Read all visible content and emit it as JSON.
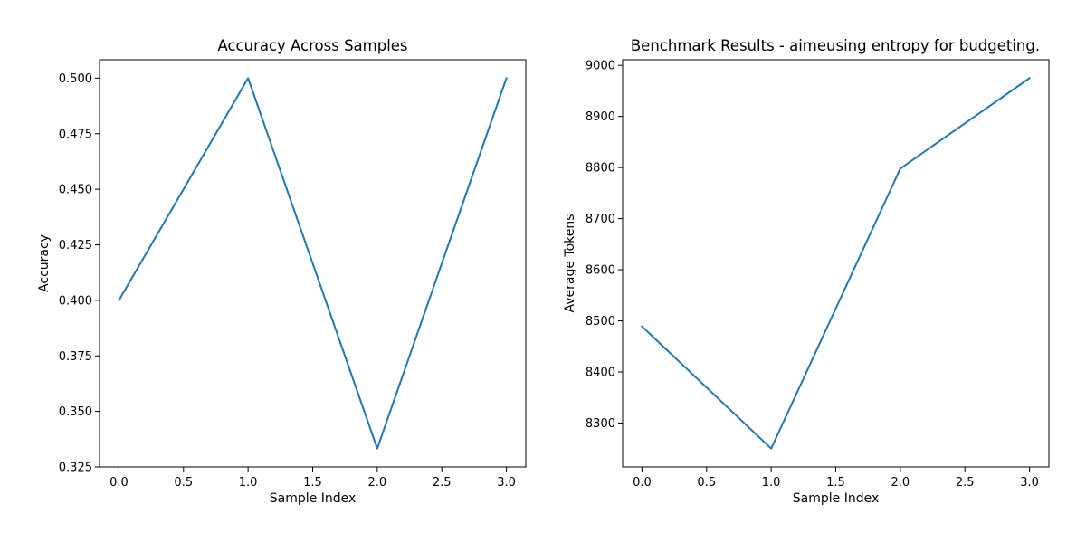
{
  "chart_data": [
    {
      "type": "line",
      "title": "Accuracy Across Samples",
      "xlabel": "Sample Index",
      "ylabel": "Accuracy",
      "x": [
        0,
        1,
        2,
        3
      ],
      "series": [
        {
          "values": [
            0.4,
            0.5,
            0.3333,
            0.5
          ],
          "color": "#1f77b4"
        }
      ],
      "xlim": [
        -0.15,
        3.15
      ],
      "ylim": [
        0.325,
        0.5083
      ],
      "xticks": [
        "0.0",
        "0.5",
        "1.0",
        "1.5",
        "2.0",
        "2.5",
        "3.0"
      ],
      "yticks": [
        "0.325",
        "0.350",
        "0.375",
        "0.400",
        "0.425",
        "0.450",
        "0.475",
        "0.500"
      ],
      "grid": false
    },
    {
      "type": "line",
      "title": "Benchmark Results - aimeusing entropy for budgeting.",
      "xlabel": "Sample Index",
      "ylabel": "Average Tokens",
      "x": [
        0,
        1,
        2,
        3
      ],
      "series": [
        {
          "values": [
            8489,
            8250,
            8798,
            8975
          ],
          "color": "#1f77b4"
        }
      ],
      "xlim": [
        -0.15,
        3.15
      ],
      "ylim": [
        8214,
        9011
      ],
      "xticks": [
        "0.0",
        "0.5",
        "1.0",
        "1.5",
        "2.0",
        "2.5",
        "3.0"
      ],
      "yticks": [
        "8300",
        "8400",
        "8500",
        "8600",
        "8700",
        "8800",
        "8900",
        "9000"
      ],
      "grid": false
    }
  ]
}
